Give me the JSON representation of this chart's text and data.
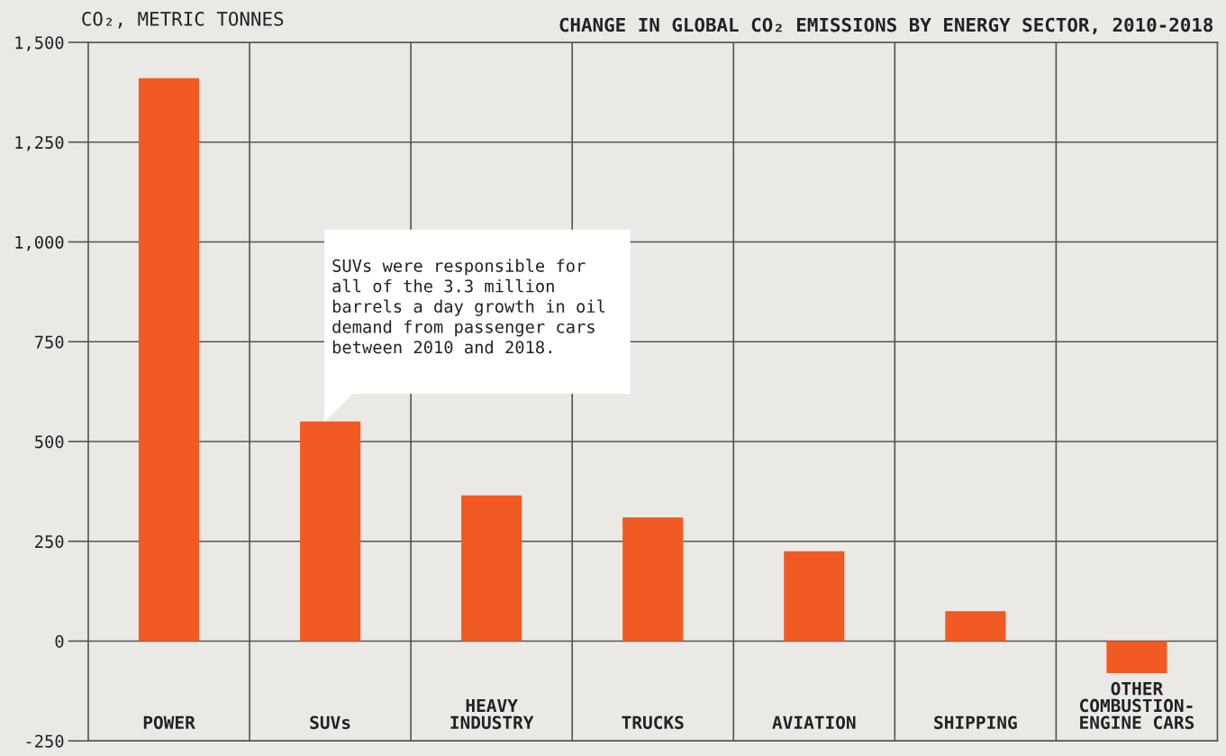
{
  "chart_data": {
    "type": "bar",
    "title": "CHANGE IN GLOBAL CO₂ EMISSIONS BY ENERGY SECTOR, 2010-2018",
    "ylabel": "CO₂, METRIC TONNES",
    "categories": [
      "POWER",
      "SUVs",
      "HEAVY\nINDUSTRY",
      "TRUCKS",
      "AVIATION",
      "SHIPPING",
      "OTHER\nCOMBUSTION-\nENGINE CARS"
    ],
    "values": [
      1410,
      550,
      365,
      310,
      225,
      75,
      -80
    ],
    "color": "#f15a22",
    "ylim": [
      -250,
      1500
    ],
    "yticks": [
      {
        "value": -250,
        "label": "-250"
      },
      0,
      250,
      500,
      750,
      {
        "value": 1000,
        "label": "1,000"
      },
      {
        "value": 1250,
        "label": "1,250"
      },
      {
        "value": 1500,
        "label": "1,500"
      }
    ],
    "grid": true,
    "annotations": [
      "SUVs were responsible for\nall of the 3.3 million\nbarrels a day growth in oil\ndemand from passenger cars\nbetween 2010 and 2018."
    ]
  }
}
